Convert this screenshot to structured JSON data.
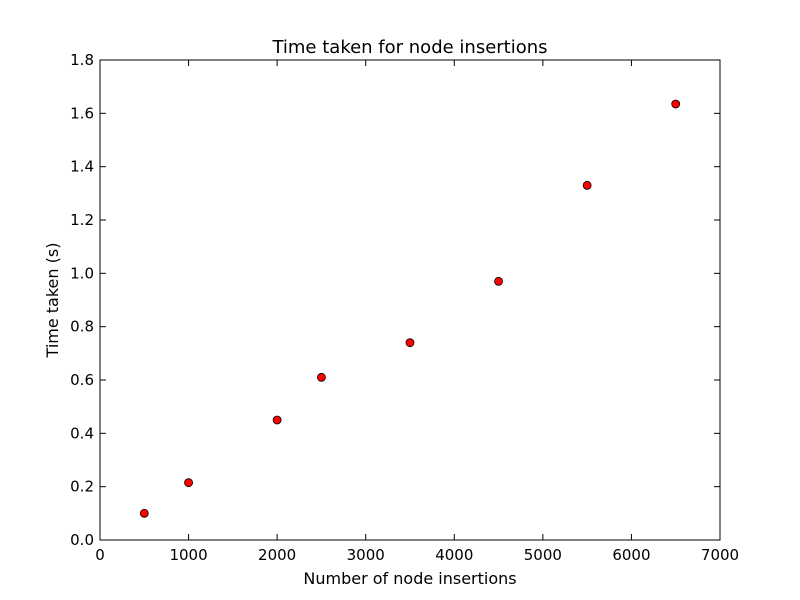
{
  "chart_data": {
    "type": "scatter",
    "title": "Time taken for node insertions",
    "xlabel": "Number of node insertions",
    "ylabel": "Time taken (s)",
    "xlim": [
      0,
      7000
    ],
    "ylim": [
      0.0,
      1.8
    ],
    "xticks": [
      "0",
      "1000",
      "2000",
      "3000",
      "4000",
      "5000",
      "6000",
      "7000"
    ],
    "yticks": [
      "0.0",
      "0.2",
      "0.4",
      "0.6",
      "0.8",
      "1.0",
      "1.2",
      "1.4",
      "1.6",
      "1.8"
    ],
    "grid": false,
    "series": [
      {
        "x": [
          500,
          1000,
          2000,
          2500,
          3500,
          4500,
          5500,
          6500
        ],
        "y": [
          0.1,
          0.215,
          0.45,
          0.61,
          0.74,
          0.97,
          1.33,
          1.635
        ],
        "marker": "circle",
        "color": "#ff0000"
      }
    ]
  }
}
